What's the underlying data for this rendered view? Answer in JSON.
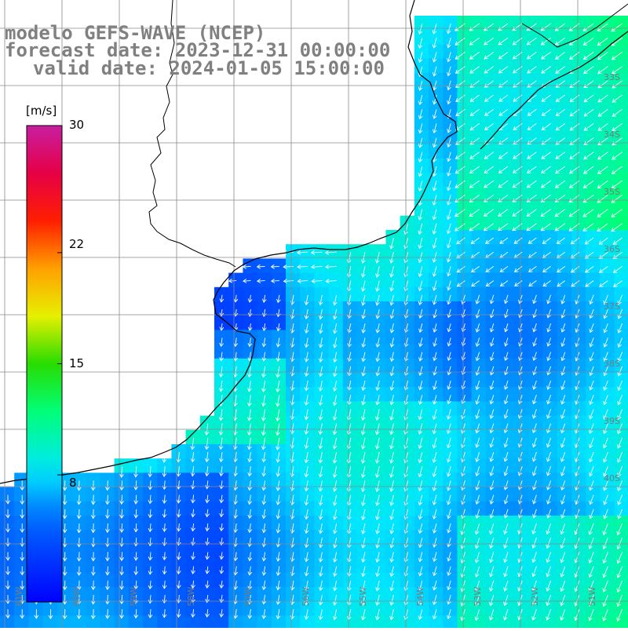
{
  "title": "modelo GEFS-WAVE (NCEP)",
  "forecast_date": "forecast date: 2023-12-31 00:00:00",
  "valid_date": "valid date: 2024-01-05 15:00:00",
  "colorbar": {
    "unit": "[m/s]",
    "ticks": [
      {
        "value": 30,
        "label": "30"
      },
      {
        "value": 22,
        "label": "22"
      },
      {
        "value": 15,
        "label": "15"
      },
      {
        "value": 8,
        "label": "8"
      }
    ],
    "min": 0,
    "max": 30
  },
  "lat_labels": [
    "33S",
    "34S",
    "35S",
    "36S",
    "37S",
    "38S",
    "39S",
    "40S"
  ],
  "lon_labels": [
    "61W",
    "60W",
    "59W",
    "58W",
    "57W",
    "56W",
    "55W",
    "54W",
    "53W",
    "52W",
    "51W"
  ],
  "colors": {
    "gridline": "#8a8a8a",
    "coast": "#000000",
    "arrow": "#ffffff",
    "header_text": "#808080"
  }
}
